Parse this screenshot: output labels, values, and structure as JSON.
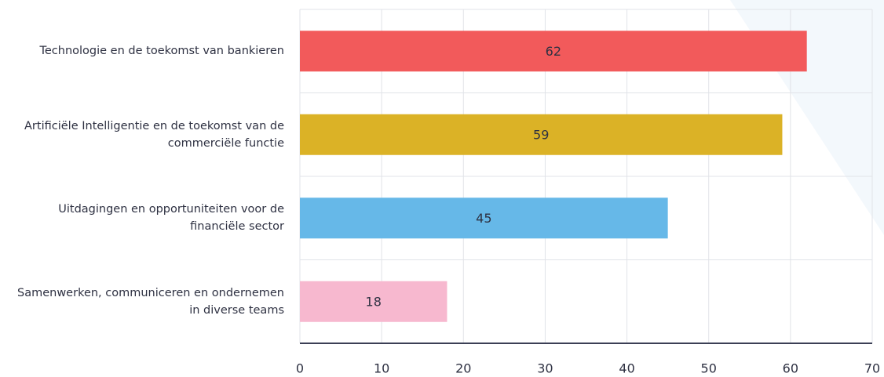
{
  "chart_data": {
    "type": "barh",
    "categories": [
      "Technologie en de toekomst van bankieren",
      "Artificiële Intelligentie en de toekomst van de commerciële functie",
      "Uitdagingen en opportuniteiten voor de financiële sector",
      "Samenwerken, communiceren en ondernemen in diverse teams"
    ],
    "values": [
      62,
      59,
      45,
      18
    ],
    "colors": [
      "#f25a5b",
      "#dbb226",
      "#66b8e8",
      "#f7b8cf"
    ],
    "xlim": [
      0,
      70
    ],
    "xticks": [
      0,
      10,
      20,
      30,
      40,
      50,
      60,
      70
    ],
    "grid": true
  }
}
